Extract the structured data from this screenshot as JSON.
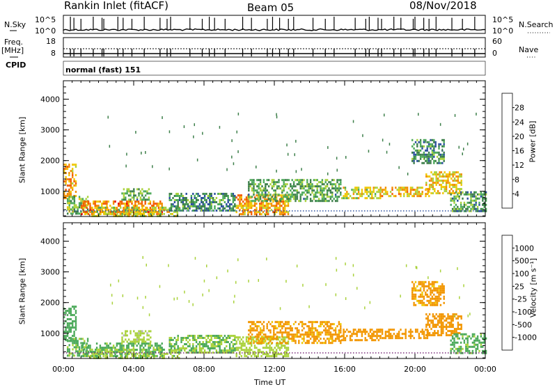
{
  "header": {
    "station": "Rankin Inlet (fitACF)",
    "beam": "Beam 05",
    "date": "08/Nov/2018"
  },
  "top_panels": {
    "nsky_label": "N.Sky",
    "nsky_ticks": [
      "10^5",
      "10^0"
    ],
    "nsearch_label": "N.Search",
    "nsearch_ticks": [
      "10^5",
      "10^0"
    ],
    "freq_label_1": "Freq.",
    "freq_label_2": "[MHz]",
    "freq_ticks": [
      "18",
      "8"
    ],
    "nave_label": "Nave",
    "nave_ticks": [
      "60",
      "0"
    ],
    "cpid_label": "CPID",
    "cpid_value": "normal (fast) 151"
  },
  "colors": {
    "power_scale": [
      "#0022ee",
      "#2b4f9e",
      "#3d7f4a",
      "#4caa5a",
      "#aad23c",
      "#f0c800",
      "#f28c00",
      "#f35a00",
      "#e60000"
    ],
    "velocity_scale": [
      "#e60000",
      "#f35a00",
      "#f29600",
      "#f0c800",
      "#b4b4b4",
      "#aad23c",
      "#4caa5a",
      "#3d7f9a",
      "#1a3fa8"
    ]
  },
  "chart_data": [
    {
      "type": "heatmap",
      "title": "",
      "ylabel": "Slant Range [km]",
      "xlabel": "",
      "x_ticks": [
        "00:00",
        "04:00",
        "08:00",
        "12:00",
        "16:00",
        "20:00",
        "00:00"
      ],
      "y_ticks": [
        1000,
        2000,
        3000,
        4000
      ],
      "ylim": [
        180,
        4600
      ],
      "xlim_hours": [
        0,
        24
      ],
      "colorbar_label": "Power [dB]",
      "colorbar_ticks": [
        4,
        8,
        12,
        16,
        20,
        24,
        28
      ],
      "colorbar_range": [
        0,
        32
      ],
      "echo_regions": [
        {
          "t0": 0.0,
          "t1": 0.7,
          "r0": 800,
          "r1": 1900,
          "value": 22
        },
        {
          "t0": 0.2,
          "t1": 1.4,
          "r0": 300,
          "r1": 850,
          "value": 14
        },
        {
          "t0": 1.0,
          "t1": 5.6,
          "r0": 250,
          "r1": 700,
          "value": 24
        },
        {
          "t0": 1.5,
          "t1": 6.6,
          "r0": 200,
          "r1": 500,
          "value": 18
        },
        {
          "t0": 3.3,
          "t1": 5.0,
          "r0": 700,
          "r1": 1100,
          "value": 12
        },
        {
          "t0": 6.0,
          "t1": 9.8,
          "r0": 350,
          "r1": 950,
          "value": 10
        },
        {
          "t0": 9.8,
          "t1": 12.8,
          "r0": 250,
          "r1": 900,
          "value": 22
        },
        {
          "t0": 10.5,
          "t1": 15.8,
          "r0": 700,
          "r1": 1400,
          "value": 12
        },
        {
          "t0": 15.8,
          "t1": 18.0,
          "r0": 800,
          "r1": 1150,
          "value": 18
        },
        {
          "t0": 18.0,
          "t1": 20.8,
          "r0": 850,
          "r1": 1150,
          "value": 21
        },
        {
          "t0": 20.6,
          "t1": 22.6,
          "r0": 950,
          "r1": 1650,
          "value": 20
        },
        {
          "t0": 22.0,
          "t1": 24.0,
          "r0": 350,
          "r1": 1000,
          "value": 11
        },
        {
          "t0": 19.8,
          "t1": 21.7,
          "r0": 1900,
          "r1": 2700,
          "value": 10
        }
      ]
    },
    {
      "type": "heatmap",
      "title": "",
      "ylabel": "Slant Range [km]",
      "xlabel": "Time UT",
      "x_ticks": [
        "00:00",
        "04:00",
        "08:00",
        "12:00",
        "16:00",
        "20:00",
        "00:00"
      ],
      "y_ticks": [
        1000,
        2000,
        3000,
        4000
      ],
      "ylim": [
        180,
        4600
      ],
      "xlim_hours": [
        0,
        24
      ],
      "colorbar_label": "Velocity [m s⁻¹]",
      "colorbar_ticks": [
        1000,
        500,
        100,
        25,
        -25,
        -100,
        -500,
        -1000
      ],
      "colorbar_range": [
        -1500,
        1500
      ],
      "echo_regions": [
        {
          "t0": 0.0,
          "t1": 0.7,
          "r0": 800,
          "r1": 1900,
          "value": 200
        },
        {
          "t0": 0.2,
          "t1": 1.4,
          "r0": 300,
          "r1": 850,
          "value": 120
        },
        {
          "t0": 1.0,
          "t1": 5.6,
          "r0": 250,
          "r1": 700,
          "value": 150
        },
        {
          "t0": 1.5,
          "t1": 6.6,
          "r0": 200,
          "r1": 500,
          "value": 80
        },
        {
          "t0": 3.3,
          "t1": 5.0,
          "r0": 700,
          "r1": 1100,
          "value": 40
        },
        {
          "t0": 6.0,
          "t1": 9.8,
          "r0": 350,
          "r1": 950,
          "value": 100
        },
        {
          "t0": 9.8,
          "t1": 12.8,
          "r0": 250,
          "r1": 900,
          "value": 60
        },
        {
          "t0": 10.5,
          "t1": 15.8,
          "r0": 700,
          "r1": 1400,
          "value": -150
        },
        {
          "t0": 15.8,
          "t1": 18.0,
          "r0": 800,
          "r1": 1150,
          "value": -200
        },
        {
          "t0": 18.0,
          "t1": 20.8,
          "r0": 850,
          "r1": 1150,
          "value": -250
        },
        {
          "t0": 20.6,
          "t1": 22.6,
          "r0": 950,
          "r1": 1650,
          "value": -300
        },
        {
          "t0": 22.0,
          "t1": 24.0,
          "r0": 350,
          "r1": 1000,
          "value": 150
        },
        {
          "t0": 19.8,
          "t1": 21.7,
          "r0": 1900,
          "r1": 2700,
          "value": -150
        }
      ]
    }
  ]
}
